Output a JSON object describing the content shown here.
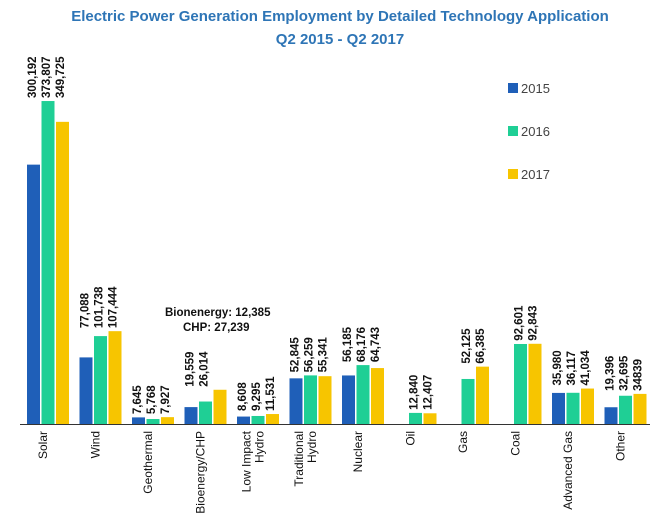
{
  "chart_data": {
    "type": "bar",
    "title": "Electric Power Generation Employment by Detailed Technology Application",
    "subtitle": "Q2 2015 - Q2 2017",
    "xlabel": "",
    "ylabel": "",
    "ylim": [
      0,
      375000
    ],
    "grid": false,
    "legend_position": "right",
    "categories": [
      [
        "Solar"
      ],
      [
        "Wind"
      ],
      [
        "Geothermal"
      ],
      [
        "Bioenergy/CHP"
      ],
      [
        "Low Impact",
        "Hydro"
      ],
      [
        "Traditional",
        "Hydro"
      ],
      [
        "Nuclear"
      ],
      [
        "Oil"
      ],
      [
        "Gas"
      ],
      [
        "Coal"
      ],
      [
        "Advanced Gas"
      ],
      [
        "Other"
      ]
    ],
    "series": [
      {
        "name": "2015",
        "color": "#1f5fb8",
        "values": [
          300192,
          77088,
          7645,
          19559,
          8608,
          52845,
          56185,
          null,
          null,
          null,
          35980,
          19396
        ],
        "labels": [
          "300,192",
          "77,088",
          "7,645",
          "19,559",
          "8,608",
          "52,845",
          "56,185",
          "",
          "",
          "",
          "35,980",
          "19,396"
        ]
      },
      {
        "name": "2016",
        "color": "#1fcf95",
        "values": [
          373807,
          101738,
          5768,
          26014,
          9295,
          56259,
          68176,
          12840,
          52125,
          92601,
          36117,
          32695
        ],
        "labels": [
          "373,807",
          "101,738",
          "5,768",
          "26,014",
          "9,295",
          "56,259",
          "68,176",
          "12,840",
          "52,125",
          "92,601",
          "36,117",
          "32,695"
        ]
      },
      {
        "name": "2017",
        "color": "#f7c500",
        "values": [
          349725,
          107444,
          7927,
          39624,
          11531,
          55341,
          64743,
          12407,
          66385,
          92843,
          41034,
          34839
        ],
        "labels": [
          "349,725",
          "107,444",
          "7,927",
          "",
          "11,531",
          "55,341",
          "64,743",
          "12,407",
          "66,385",
          "92,843",
          "41,034",
          "34839"
        ]
      }
    ],
    "annotations": [
      "Bionenergy: 12,385",
      "CHP: 27,239"
    ]
  }
}
